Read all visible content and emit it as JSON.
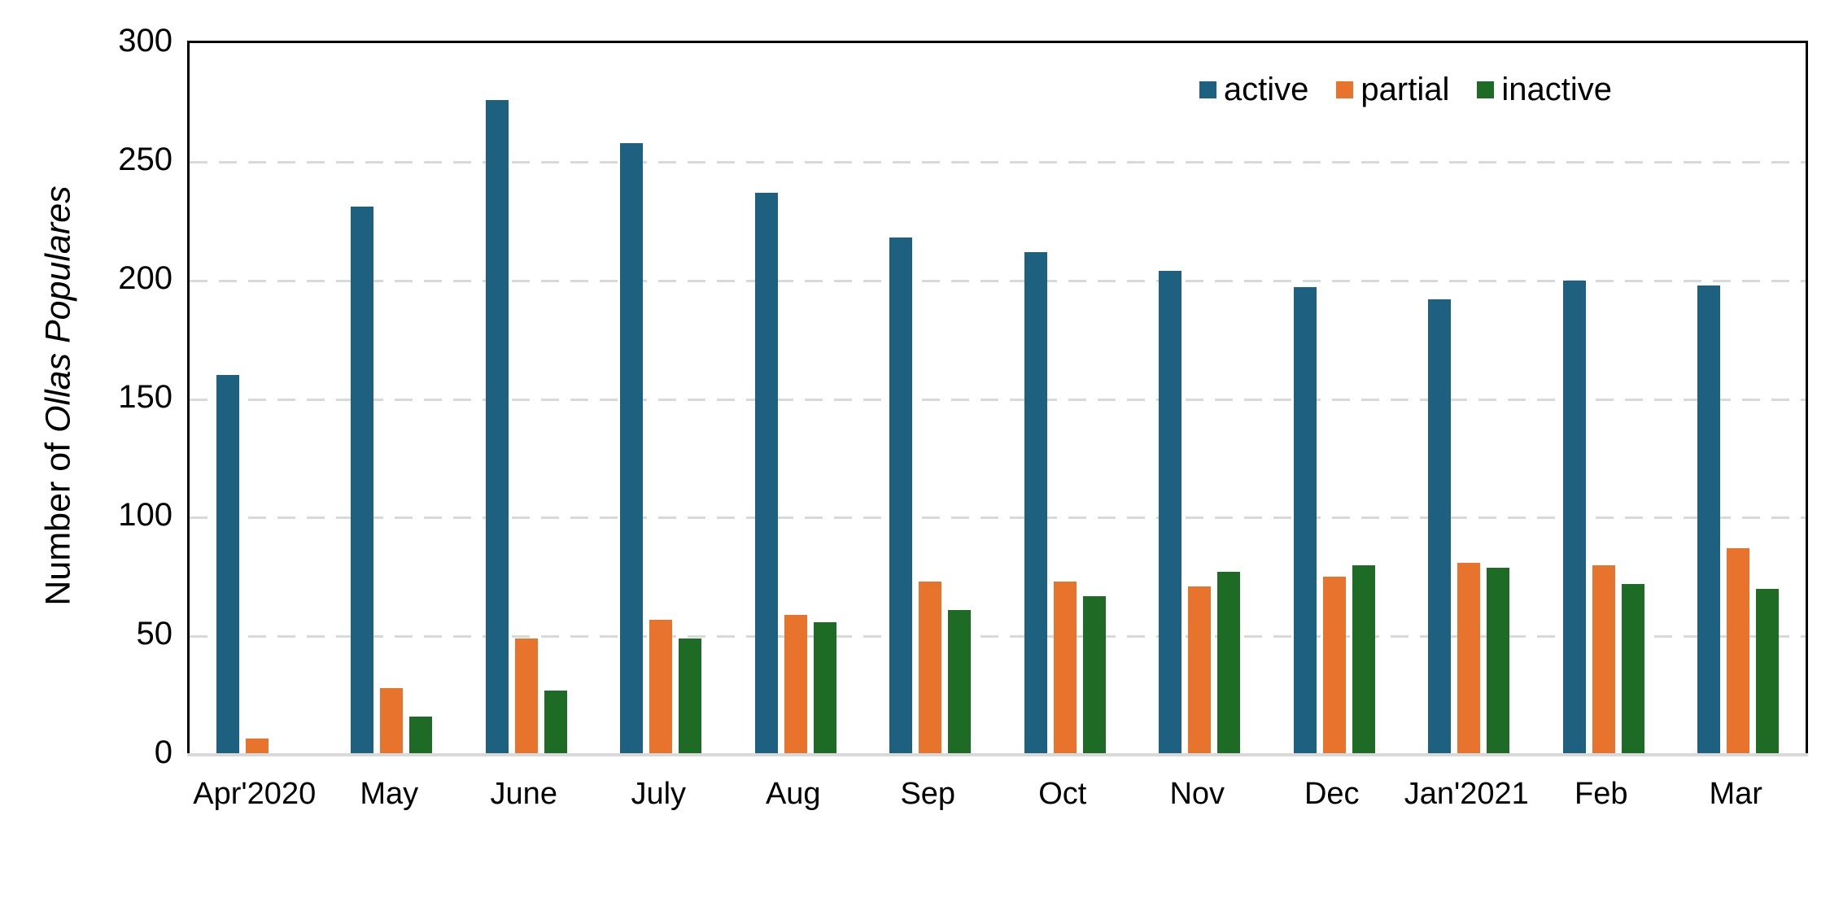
{
  "figure": {
    "y_axis": {
      "label_regular": "Number of ",
      "label_italic": "Ollas Populares",
      "max": 300
    },
    "legend": {
      "items": [
        {
          "label": "active",
          "color": "#1E6080"
        },
        {
          "label": "partial",
          "color": "#E8732C"
        },
        {
          "label": "inactive",
          "color": "#1E6B25"
        }
      ]
    }
  },
  "colors": {
    "active": "#1E6080",
    "partial": "#E8732C",
    "inactive": "#1E6B25",
    "gridline": "#D9D9D9",
    "baseline": "#D9D9D9",
    "frame": "#000000",
    "text": "#000000",
    "background": "#FFFFFF"
  },
  "chart_data": {
    "type": "bar",
    "title": "",
    "xlabel": "",
    "ylabel": "Number of Ollas Populares",
    "ylim": [
      0,
      300
    ],
    "yticks": [
      0,
      50,
      100,
      150,
      200,
      250,
      300
    ],
    "grid": "horizontal-dashed",
    "legend_position": "top-right-inside",
    "categories": [
      "Apr'2020",
      "May",
      "June",
      "July",
      "Aug",
      "Sep",
      "Oct",
      "Nov",
      "Dec",
      "Jan'2021",
      "Feb",
      "Mar"
    ],
    "series": [
      {
        "name": "active",
        "color": "#1E6080",
        "values": [
          160,
          231,
          276,
          258,
          237,
          218,
          212,
          204,
          197,
          192,
          200,
          198
        ]
      },
      {
        "name": "partial",
        "color": "#E8732C",
        "values": [
          7,
          28,
          49,
          57,
          59,
          73,
          73,
          71,
          75,
          81,
          80,
          87
        ]
      },
      {
        "name": "inactive",
        "color": "#1E6B25",
        "values": [
          0,
          16,
          27,
          49,
          56,
          61,
          67,
          77,
          80,
          79,
          72,
          70
        ]
      }
    ]
  }
}
